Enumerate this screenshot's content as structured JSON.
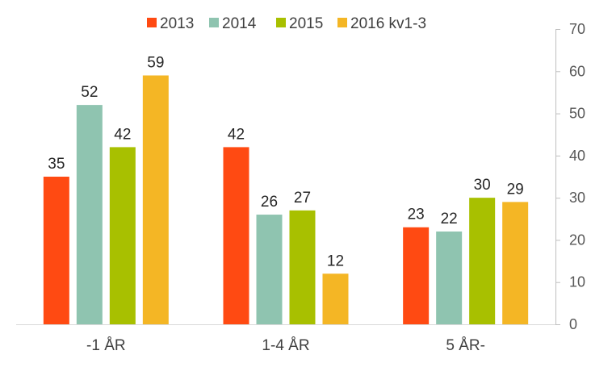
{
  "chart_data": {
    "type": "bar",
    "categories": [
      "-1 ÅR",
      "1-4 ÅR",
      "5 ÅR-"
    ],
    "series": [
      {
        "name": "2013",
        "color": "#FF4A12",
        "values": [
          35,
          42,
          23
        ]
      },
      {
        "name": "2014",
        "color": "#8FC4B0",
        "values": [
          52,
          26,
          22
        ]
      },
      {
        "name": "2015",
        "color": "#A8C000",
        "values": [
          42,
          27,
          30
        ]
      },
      {
        "name": "2016 kv1-3",
        "color": "#F4B625",
        "values": [
          59,
          12,
          29
        ]
      }
    ],
    "data_labels": [
      [
        "35",
        "42",
        "23"
      ],
      [
        "52",
        "26",
        "22"
      ],
      [
        "42",
        "27",
        "30"
      ],
      [
        "59",
        "12",
        "29"
      ]
    ],
    "ylim": [
      0,
      70
    ],
    "yticks": [
      "0",
      "10",
      "20",
      "30",
      "40",
      "50",
      "60",
      "70"
    ],
    "y_axis_side": "right",
    "legend_position": "top",
    "grid": false,
    "title": "",
    "xlabel": "",
    "ylabel": ""
  }
}
